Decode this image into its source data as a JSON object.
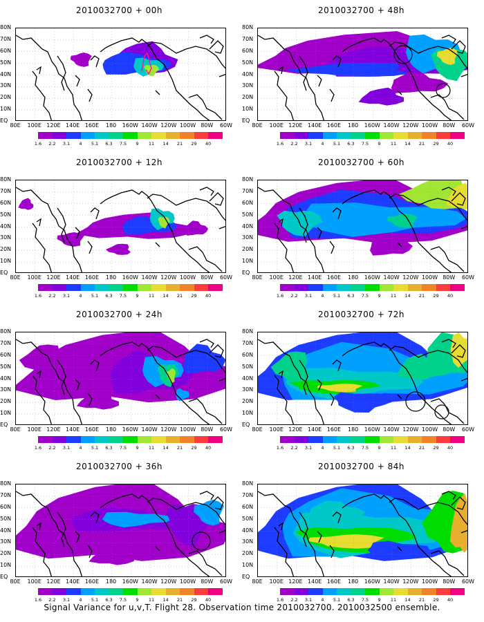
{
  "panels": [
    {
      "title": "2010032700 + 00h"
    },
    {
      "title": "2010032700 + 48h"
    },
    {
      "title": "2010032700 + 12h"
    },
    {
      "title": "2010032700 + 60h"
    },
    {
      "title": "2010032700 + 24h"
    },
    {
      "title": "2010032700 + 72h"
    },
    {
      "title": "2010032700 + 36h"
    },
    {
      "title": "2010032700 + 84h"
    }
  ],
  "lat_labels": [
    "80N",
    "70N",
    "60N",
    "50N",
    "40N",
    "30N",
    "20N",
    "10N",
    "EQ"
  ],
  "lon_labels": [
    "80E",
    "100E",
    "120E",
    "140E",
    "160E",
    "180",
    "160W",
    "140W",
    "120W",
    "100W",
    "80W",
    "60W"
  ],
  "colorbar": {
    "levels": [
      "1.6",
      "2.2",
      "3.1",
      "4",
      "5.1",
      "6.3",
      "7.5",
      "9",
      "11",
      "14",
      "21",
      "29",
      "40"
    ],
    "colors": [
      "#a000c8",
      "#8200dc",
      "#1e3cff",
      "#00a0ff",
      "#00c8c8",
      "#00d28c",
      "#00dc00",
      "#a0e632",
      "#e6dc32",
      "#e6af2d",
      "#f08228",
      "#fa3c3c",
      "#f00082"
    ]
  },
  "footer": "Signal Variance for u,v,T. Flight 28. Observation time 2010032700. 2010032500 ensemble."
}
